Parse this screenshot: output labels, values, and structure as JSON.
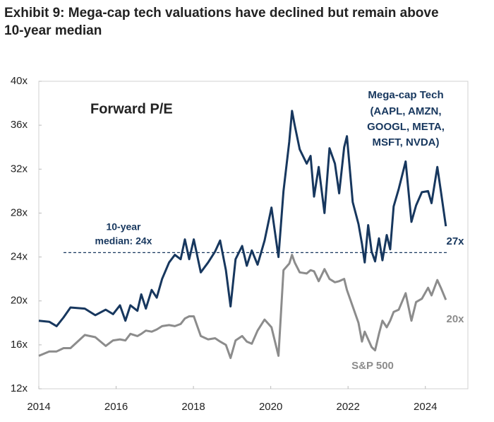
{
  "chart_data": {
    "type": "line",
    "title": "Exhibit 9: Mega-cap tech valuations have declined but remain above 10-year median",
    "subtitle": "Forward P/E",
    "x": [
      2014.0,
      2014.27,
      2014.46,
      2014.64,
      2014.82,
      2015.19,
      2015.46,
      2015.73,
      2015.92,
      2016.1,
      2016.24,
      2016.37,
      2016.55,
      2016.65,
      2016.77,
      2016.92,
      2017.05,
      2017.19,
      2017.37,
      2017.52,
      2017.67,
      2017.78,
      2017.89,
      2018.01,
      2018.19,
      2018.38,
      2018.56,
      2018.69,
      2018.84,
      2018.96,
      2019.09,
      2019.26,
      2019.38,
      2019.51,
      2019.66,
      2019.84,
      2020.02,
      2020.2,
      2020.33,
      2020.48,
      2020.55,
      2020.62,
      2020.75,
      2020.93,
      2021.03,
      2021.12,
      2021.24,
      2021.39,
      2021.52,
      2021.66,
      2021.77,
      2021.9,
      2021.97,
      2022.12,
      2022.27,
      2022.36,
      2022.43,
      2022.52,
      2022.61,
      2022.7,
      2022.8,
      2022.89,
      2023.0,
      2023.09,
      2023.18,
      2023.31,
      2023.49,
      2023.64,
      2023.76,
      2023.91,
      2024.07,
      2024.16,
      2024.31,
      2024.4,
      2024.53
    ],
    "series": [
      {
        "name": "Mega-cap Tech",
        "name_lines": [
          "(AAPL, AMZN,",
          "GOOGL, META,",
          "MSFT, NVDA)"
        ],
        "color": "#17375e",
        "end_label": "27x",
        "values": [
          18.2,
          18.1,
          17.7,
          18.5,
          19.4,
          19.3,
          18.7,
          19.2,
          18.8,
          19.6,
          18.2,
          19.6,
          19.1,
          20.6,
          19.3,
          21.0,
          20.3,
          22.0,
          23.5,
          24.2,
          23.8,
          25.6,
          23.8,
          25.6,
          22.6,
          23.5,
          24.5,
          25.5,
          22.8,
          19.5,
          23.8,
          25.0,
          23.2,
          24.6,
          23.3,
          25.5,
          28.5,
          24.0,
          30.0,
          34.5,
          37.3,
          36.0,
          33.8,
          32.5,
          33.2,
          29.5,
          32.2,
          28.0,
          33.9,
          32.5,
          29.8,
          34.0,
          35.0,
          29.0,
          27.0,
          25.2,
          23.5,
          26.9,
          24.5,
          23.6,
          25.7,
          23.7,
          26.0,
          24.7,
          28.6,
          30.2,
          32.7,
          27.2,
          28.7,
          29.9,
          30.0,
          28.9,
          32.2,
          30.0,
          26.8
        ]
      },
      {
        "name": "S&P 500",
        "color": "#8c8c8c",
        "end_label": "20x",
        "values": [
          15.0,
          15.4,
          15.4,
          15.7,
          15.7,
          16.9,
          16.7,
          15.9,
          16.4,
          16.5,
          16.4,
          17.0,
          16.8,
          17.0,
          17.3,
          17.2,
          17.4,
          17.7,
          17.8,
          17.7,
          17.9,
          18.4,
          18.6,
          18.6,
          16.8,
          16.5,
          16.6,
          16.3,
          16.0,
          14.8,
          16.4,
          16.8,
          16.3,
          16.1,
          17.3,
          18.3,
          17.6,
          15.0,
          22.8,
          23.4,
          24.2,
          23.5,
          22.6,
          22.5,
          22.8,
          22.7,
          21.8,
          22.9,
          22.0,
          21.7,
          21.8,
          22.0,
          21.0,
          19.5,
          18.0,
          16.3,
          17.2,
          16.5,
          15.8,
          15.5,
          17.0,
          18.2,
          17.6,
          18.2,
          19.0,
          19.2,
          20.7,
          18.2,
          19.9,
          20.2,
          21.2,
          20.5,
          21.9,
          21.2,
          20.1
        ]
      }
    ],
    "median_line": {
      "value": 24.4,
      "label_lines": [
        "10-year",
        "median: 24x"
      ]
    },
    "xlim": [
      2014,
      2025.1
    ],
    "xticks": [
      2014,
      2016,
      2018,
      2020,
      2022,
      2024
    ],
    "ylim": [
      12,
      40
    ],
    "yticks": [
      {
        "value": 12,
        "label": "12x"
      },
      {
        "value": 16,
        "label": "16x"
      },
      {
        "value": 20,
        "label": "20x"
      },
      {
        "value": 24,
        "label": "24x"
      },
      {
        "value": 28,
        "label": "28x"
      },
      {
        "value": 32,
        "label": "32x"
      },
      {
        "value": 36,
        "label": "36x"
      },
      {
        "value": 40,
        "label": "40x"
      }
    ]
  }
}
